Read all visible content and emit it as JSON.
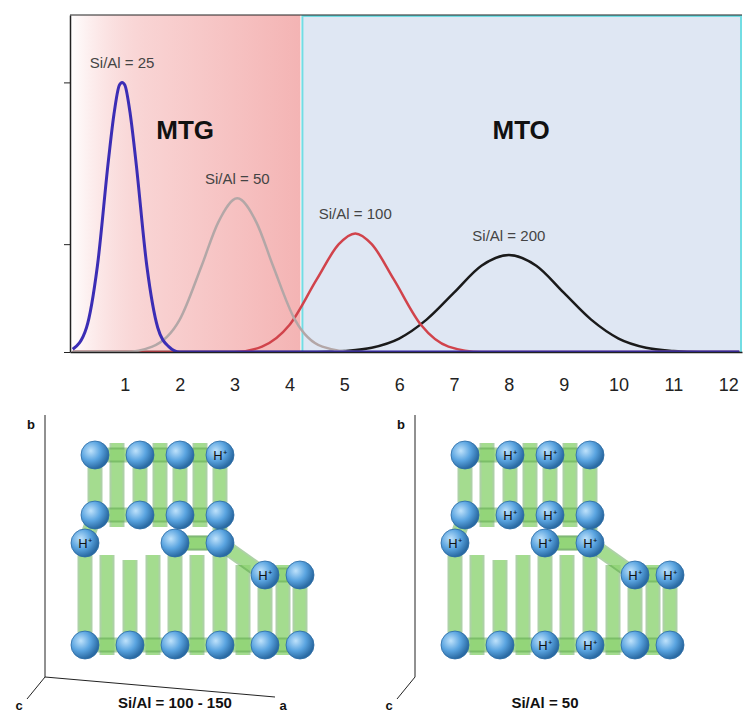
{
  "chart_data": {
    "type": "line",
    "xlim": [
      0,
      12.25
    ],
    "xticks": [
      1,
      2,
      3,
      4,
      5,
      6,
      7,
      8,
      9,
      10,
      11,
      12
    ],
    "ylim": [
      0,
      1.25
    ],
    "yticks": [
      0,
      0.4,
      1
    ],
    "tick_labels": "x",
    "regions": [
      {
        "label": "MTG",
        "start": 0,
        "end": 4.2,
        "color": "#f4b4b4"
      },
      {
        "label": "MTO",
        "start": 4.2,
        "end": 12.25,
        "color": "#dfe7f3"
      }
    ],
    "series": [
      {
        "name": "Si/Al = 25",
        "color": "#3b2db5",
        "x": [
          0.05,
          0.3,
          0.5,
          0.7,
          0.8,
          0.9,
          0.95,
          1.0,
          1.1,
          1.2,
          1.4,
          1.6,
          1.8,
          2.0,
          2.3,
          12.2
        ],
        "values": [
          0.01,
          0.09,
          0.32,
          0.71,
          0.88,
          0.99,
          1.0,
          0.99,
          0.88,
          0.71,
          0.32,
          0.09,
          0.02,
          0,
          0,
          0
        ]
      },
      {
        "name": "Si/Al = 50",
        "color": "#b3a7a7",
        "x": [
          0.05,
          1.0,
          1.5,
          2.0,
          2.4,
          2.7,
          3.05,
          3.4,
          3.7,
          4.1,
          4.6,
          5.2,
          12.2
        ],
        "values": [
          0,
          0,
          0.02,
          0.12,
          0.32,
          0.48,
          0.57,
          0.48,
          0.32,
          0.12,
          0.02,
          0,
          0
        ]
      },
      {
        "name": "Si/Al = 100",
        "color": "#d1434b",
        "x": [
          0.05,
          3.0,
          3.5,
          4.0,
          4.5,
          4.9,
          5.2,
          5.5,
          5.9,
          6.4,
          6.9,
          7.5,
          12.2
        ],
        "values": [
          0,
          0,
          0.02,
          0.1,
          0.27,
          0.4,
          0.44,
          0.4,
          0.27,
          0.1,
          0.02,
          0,
          0
        ]
      },
      {
        "name": "Si/Al = 200",
        "color": "#1a1a1a",
        "x": [
          0.05,
          4.5,
          5.0,
          5.5,
          6.0,
          6.5,
          7.0,
          7.5,
          8.0,
          8.5,
          9.0,
          9.5,
          10.0,
          10.5,
          11.0,
          11.5,
          12.2
        ],
        "values": [
          0,
          0,
          0.004,
          0.016,
          0.05,
          0.12,
          0.22,
          0.32,
          0.36,
          0.32,
          0.22,
          0.12,
          0.05,
          0.016,
          0.004,
          0,
          0
        ]
      }
    ]
  },
  "structure": {
    "panels": [
      {
        "caption": "Si/Al = 100 - 150",
        "axes": [
          "b",
          "c",
          "a"
        ],
        "sites": [
          "H⁺",
          "H⁺",
          "H⁺"
        ]
      },
      {
        "caption": "Si/Al = 50",
        "axes": [
          "b",
          "c"
        ],
        "sites": [
          "H⁺",
          "H⁺",
          "H⁺",
          "H⁺",
          "H⁺",
          "H⁺",
          "H⁺",
          "H⁺",
          "H⁺",
          "H⁺",
          "H⁺"
        ]
      }
    ]
  }
}
